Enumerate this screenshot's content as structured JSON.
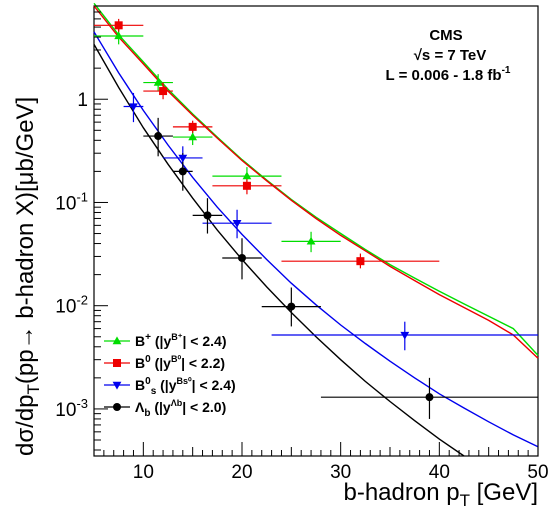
{
  "chart_data": {
    "type": "scatter",
    "title": "",
    "xlabel": "b-hadron p",
    "xlabel_sub": "T",
    "xlabel_unit": " [GeV]",
    "ylabel_parts": [
      "dσ/dp",
      "T",
      "(pp→ b-hadron X)[μb/GeV]"
    ],
    "xlim": [
      5,
      50
    ],
    "ylim": [
      0.00035,
      8
    ],
    "y_scale": "log",
    "x_ticks": [
      10,
      20,
      30,
      40,
      50
    ],
    "y_ticks": [
      0.001,
      0.01,
      0.1,
      1
    ],
    "y_tick_labels": [
      {
        "base": "10",
        "exp": "-3"
      },
      {
        "base": "10",
        "exp": "-2"
      },
      {
        "base": "10",
        "exp": "-1"
      },
      {
        "base": "1",
        "exp": ""
      }
    ],
    "info": {
      "experiment": "CMS",
      "energy": "√s = 7 TeV",
      "lumi": "L = 0.006 - 1.8 fb",
      "lumi_exp": "-1"
    },
    "legend": [
      {
        "marker": "triangle",
        "color": "#00dd00",
        "label": "B",
        "sup": "+",
        "cut": " (|y",
        "cut_sup": "B⁺",
        "cut_tail": "| < 2.4)"
      },
      {
        "marker": "square",
        "color": "#ee0000",
        "label": "B",
        "sup": "0",
        "cut": " (|y",
        "cut_sup": "B⁰",
        "cut_tail": "| < 2.2)"
      },
      {
        "marker": "triangle-down",
        "color": "#0000ee",
        "label": "B",
        "sub": "s",
        "sup": "0",
        "cut": " (|y",
        "cut_sup": "Bs⁰",
        "cut_tail": "| < 2.4)"
      },
      {
        "marker": "circle",
        "color": "#000000",
        "label": "Λ",
        "sub": "b",
        "cut": " (|y",
        "cut_sup": "Λb",
        "cut_tail": "| < 2.0)"
      }
    ],
    "series": [
      {
        "name": "B+",
        "color": "#00dd00",
        "marker": "triangle",
        "points": [
          {
            "x": 7.5,
            "y": 4.1,
            "xlo": 5,
            "xhi": 10,
            "ylo": 3.4,
            "yhi": 4.9
          },
          {
            "x": 11.5,
            "y": 1.45,
            "xlo": 10,
            "xhi": 13,
            "ylo": 1.2,
            "yhi": 1.75
          },
          {
            "x": 15,
            "y": 0.43,
            "xlo": 13,
            "xhi": 17,
            "ylo": 0.36,
            "yhi": 0.51
          },
          {
            "x": 20.5,
            "y": 0.18,
            "xlo": 17,
            "xhi": 24,
            "ylo": 0.145,
            "yhi": 0.22
          },
          {
            "x": 27,
            "y": 0.042,
            "xlo": 24,
            "xhi": 30,
            "ylo": 0.033,
            "yhi": 0.052
          }
        ],
        "fit": [
          [
            5,
            8.5
          ],
          [
            7.5,
            4.2
          ],
          [
            10,
            2.3
          ],
          [
            12.5,
            1.25
          ],
          [
            15,
            0.72
          ],
          [
            17.5,
            0.43
          ],
          [
            20,
            0.26
          ],
          [
            22.5,
            0.165
          ],
          [
            25,
            0.107
          ],
          [
            27.5,
            0.072
          ],
          [
            30,
            0.05
          ],
          [
            32.5,
            0.035
          ],
          [
            35,
            0.025
          ],
          [
            37.5,
            0.0185
          ],
          [
            40,
            0.0138
          ],
          [
            42.5,
            0.0104
          ],
          [
            45,
            0.0079
          ],
          [
            47.5,
            0.006
          ],
          [
            50,
            0.0033
          ]
        ]
      },
      {
        "name": "B0",
        "color": "#ee0000",
        "marker": "square",
        "points": [
          {
            "x": 7.5,
            "y": 5.2,
            "xlo": 5,
            "xhi": 10,
            "ylo": 4.5,
            "yhi": 6.0
          },
          {
            "x": 12,
            "y": 1.2,
            "xlo": 10,
            "xhi": 13,
            "ylo": 1.0,
            "yhi": 1.45
          },
          {
            "x": 15,
            "y": 0.54,
            "xlo": 13,
            "xhi": 17,
            "ylo": 0.47,
            "yhi": 0.62
          },
          {
            "x": 20.5,
            "y": 0.145,
            "xlo": 17,
            "xhi": 24,
            "ylo": 0.12,
            "yhi": 0.175
          },
          {
            "x": 32,
            "y": 0.027,
            "xlo": 24,
            "xhi": 40,
            "ylo": 0.023,
            "yhi": 0.032
          }
        ],
        "fit": [
          [
            5,
            8.0
          ],
          [
            7.5,
            4.0
          ],
          [
            10,
            2.2
          ],
          [
            12.5,
            1.2
          ],
          [
            15,
            0.7
          ],
          [
            17.5,
            0.42
          ],
          [
            20,
            0.255
          ],
          [
            22.5,
            0.162
          ],
          [
            25,
            0.105
          ],
          [
            27.5,
            0.07
          ],
          [
            30,
            0.048
          ],
          [
            32.5,
            0.034
          ],
          [
            35,
            0.024
          ],
          [
            37.5,
            0.0175
          ],
          [
            40,
            0.0128
          ],
          [
            42.5,
            0.0096
          ],
          [
            45,
            0.0072
          ],
          [
            47.5,
            0.0052
          ],
          [
            50,
            0.0031
          ]
        ]
      },
      {
        "name": "Bs0",
        "color": "#0000ee",
        "marker": "triangle-down",
        "points": [
          {
            "x": 9,
            "y": 0.85,
            "xlo": 8,
            "xhi": 10,
            "ylo": 0.6,
            "yhi": 1.15
          },
          {
            "x": 14,
            "y": 0.27,
            "xlo": 12,
            "xhi": 16,
            "ylo": 0.2,
            "yhi": 0.35
          },
          {
            "x": 19.5,
            "y": 0.063,
            "xlo": 16,
            "xhi": 23,
            "ylo": 0.045,
            "yhi": 0.085
          },
          {
            "x": 36.5,
            "y": 0.0052,
            "xlo": 23,
            "xhi": 50,
            "ylo": 0.0037,
            "yhi": 0.007
          }
        ],
        "fit": [
          [
            5,
            4.5
          ],
          [
            7.5,
            1.8
          ],
          [
            10,
            0.78
          ],
          [
            12.5,
            0.36
          ],
          [
            15,
            0.175
          ],
          [
            17.5,
            0.09
          ],
          [
            20,
            0.049
          ],
          [
            22.5,
            0.028
          ],
          [
            25,
            0.0165
          ],
          [
            27.5,
            0.0102
          ],
          [
            30,
            0.0065
          ],
          [
            32.5,
            0.0043
          ],
          [
            35,
            0.0029
          ],
          [
            37.5,
            0.002
          ],
          [
            40,
            0.0014
          ],
          [
            42.5,
            0.00102
          ],
          [
            45,
            0.00075
          ],
          [
            47.5,
            0.00056
          ],
          [
            50,
            0.00043
          ]
        ]
      },
      {
        "name": "Λb",
        "color": "#000000",
        "marker": "circle",
        "points": [
          {
            "x": 11.5,
            "y": 0.44,
            "xlo": 10,
            "xhi": 13,
            "ylo": 0.28,
            "yhi": 0.66
          },
          {
            "x": 14,
            "y": 0.2,
            "xlo": 13,
            "xhi": 15,
            "ylo": 0.13,
            "yhi": 0.3
          },
          {
            "x": 16.5,
            "y": 0.075,
            "xlo": 15,
            "xhi": 18,
            "ylo": 0.05,
            "yhi": 0.11
          },
          {
            "x": 20,
            "y": 0.029,
            "xlo": 18,
            "xhi": 22,
            "ylo": 0.018,
            "yhi": 0.045
          },
          {
            "x": 25,
            "y": 0.0098,
            "xlo": 22,
            "xhi": 28,
            "ylo": 0.0063,
            "yhi": 0.015
          },
          {
            "x": 39,
            "y": 0.0013,
            "xlo": 28,
            "xhi": 50,
            "ylo": 0.0008,
            "yhi": 0.002
          }
        ],
        "fit": [
          [
            5,
            3.4
          ],
          [
            7.5,
            1.3
          ],
          [
            10,
            0.53
          ],
          [
            12.5,
            0.235
          ],
          [
            15,
            0.11
          ],
          [
            17.5,
            0.054
          ],
          [
            20,
            0.028
          ],
          [
            22.5,
            0.0152
          ],
          [
            25,
            0.0086
          ],
          [
            27.5,
            0.005
          ],
          [
            30,
            0.003
          ],
          [
            32.5,
            0.00185
          ],
          [
            35,
            0.00118
          ],
          [
            37.5,
            0.00077
          ],
          [
            40,
            0.00051
          ],
          [
            42.5,
            0.00035
          ]
        ]
      }
    ],
    "grid": false,
    "legend_position": "bottom-left"
  }
}
